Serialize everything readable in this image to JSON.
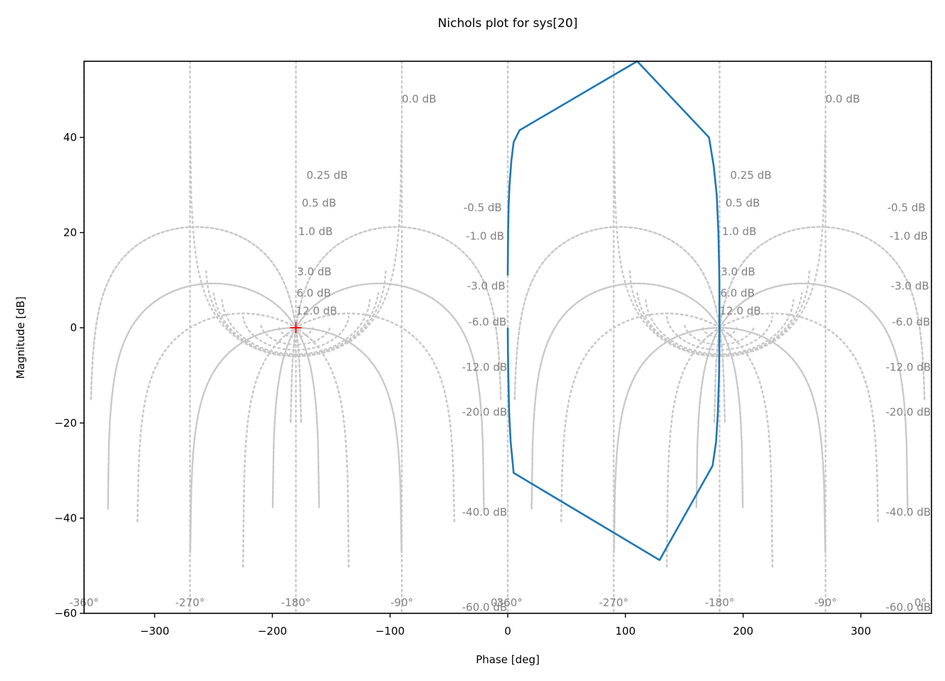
{
  "chart_data": {
    "type": "line",
    "title": "Nichols plot for sys[20]",
    "xlabel": "Phase [deg]",
    "ylabel": "Magnitude [dB]",
    "xlim": [
      -360,
      360
    ],
    "ylim": [
      -60,
      56
    ],
    "xticks": [
      -300,
      -200,
      -100,
      0,
      100,
      200,
      300
    ],
    "xtick_labels": [
      "−300",
      "−200",
      "−100",
      "0",
      "100",
      "200",
      "300"
    ],
    "yticks": [
      -60,
      -40,
      -20,
      0,
      20,
      40
    ],
    "ytick_labels": [
      "−60",
      "−40",
      "−20",
      "0",
      "20",
      "40"
    ],
    "grid": true,
    "series": [
      {
        "color": "#1f77b4",
        "x": [
          0.0,
          0.3,
          0.8,
          1.5,
          3.0,
          5.0,
          10.0,
          110.0,
          171.0,
          175.0,
          177.5,
          179.0,
          179.8,
          179.9,
          179.5,
          178.5,
          177.0,
          174.0,
          129.0,
          5.0,
          2.5,
          1.2,
          0.5,
          0.2,
          0.0
        ],
        "y": [
          11.0,
          20.0,
          26.0,
          30.0,
          35.0,
          39.0,
          41.5,
          56.0,
          40.0,
          34.0,
          28.0,
          20.0,
          10.0,
          0.0,
          -10.0,
          -18.0,
          -24.0,
          -29.0,
          -48.8,
          -30.5,
          -24.0,
          -18.0,
          -10.0,
          -5.0,
          0.0
        ]
      }
    ],
    "critical_point": {
      "x": -180,
      "y": 0,
      "marker": "+",
      "color": "#ff0000"
    },
    "m_circle_labels": [
      "0.0 dB",
      "0.25 dB",
      "0.5 dB",
      "1.0 dB",
      "3.0 dB",
      "6.0 dB",
      "12.0 dB",
      "-0.5 dB",
      "-1.0 dB",
      "-3.0 dB",
      "-6.0 dB",
      "-12.0 dB",
      "-20.0 dB",
      "-40.0 dB",
      "-60.0 dB"
    ],
    "n_circle_labels": [
      "-360°",
      "-270°",
      "-180°",
      "-90°",
      "0°"
    ]
  }
}
